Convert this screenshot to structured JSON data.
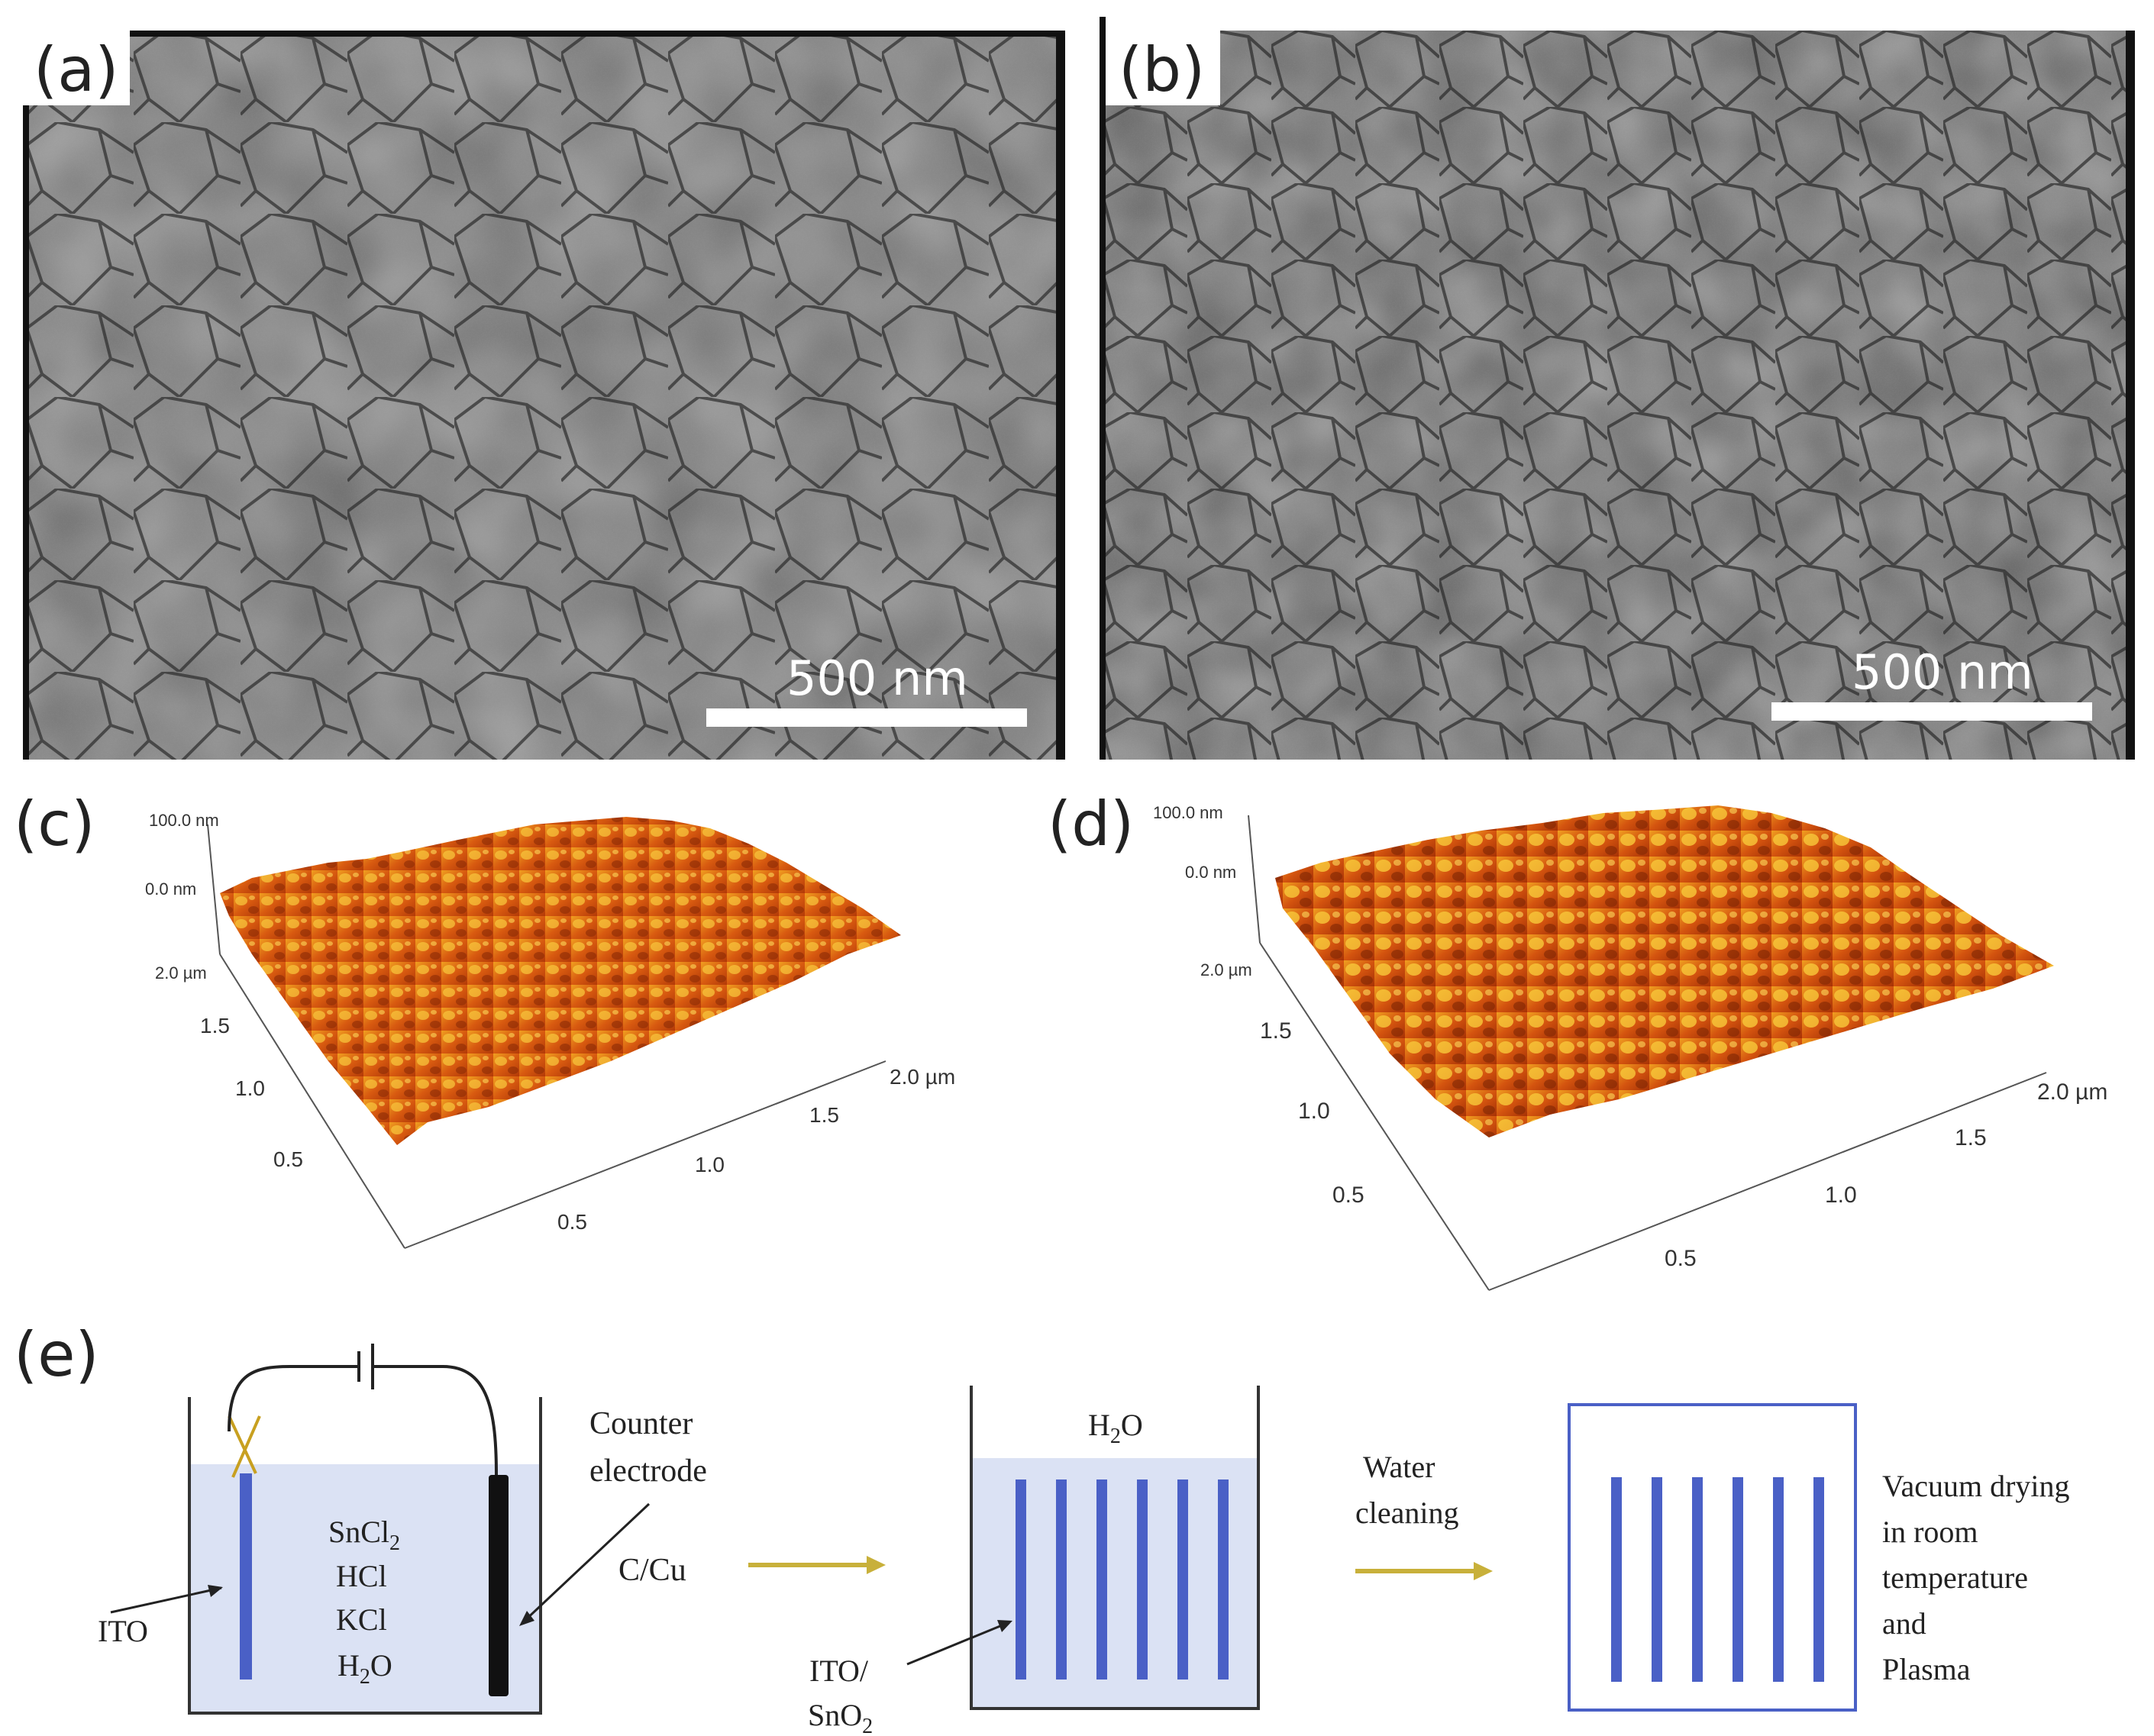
{
  "figure": {
    "panels": {
      "a": {
        "label": "(a)",
        "scale_bar": "500 nm"
      },
      "b": {
        "label": "(b)",
        "scale_bar": "500 nm"
      },
      "c": {
        "label": "(c)",
        "z_top": "100.0 nm",
        "z_zero": "0.0 nm",
        "y_ticks": [
          "2.0 µm",
          "1.5",
          "1.0",
          "0.5"
        ],
        "x_ticks": [
          "0.5",
          "1.0",
          "1.5",
          "2.0 µm"
        ]
      },
      "d": {
        "label": "(d)",
        "z_top": "100.0 nm",
        "z_zero": "0.0 nm",
        "y_ticks": [
          "2.0 µm",
          "1.5",
          "1.0",
          "0.5"
        ],
        "x_ticks": [
          "0.5",
          "1.0",
          "1.5",
          "2.0 µm"
        ]
      },
      "e": {
        "label": "(e)",
        "step1": {
          "solution": [
            "SnCl",
            "HCl",
            "KCl",
            "H"
          ],
          "solution_sub": [
            "2",
            "",
            "",
            "2"
          ],
          "solution_tail": [
            "",
            "",
            "",
            "O"
          ],
          "electrode_label": "ITO",
          "counter_line1": "Counter",
          "counter_line2": "electrode",
          "counter_material": "C/Cu"
        },
        "step2": {
          "bath": "H",
          "bath_sub": "2",
          "bath_tail": "O",
          "sample_line1": "ITO/",
          "sample_line2": "SnO",
          "sample_sub": "2",
          "arrow_line1": "Water",
          "arrow_line2": "cleaning"
        },
        "step3": {
          "lines": [
            "Vacuum drying",
            "in room",
            "temperature",
            "and",
            "Plasma"
          ]
        }
      }
    },
    "colors": {
      "solution": "#dbe2f4",
      "electrode_blue": "#4a60c6",
      "arrow_gold": "#c8b03a",
      "afm_dark": "#b23a08",
      "afm_light": "#f0a020"
    }
  }
}
